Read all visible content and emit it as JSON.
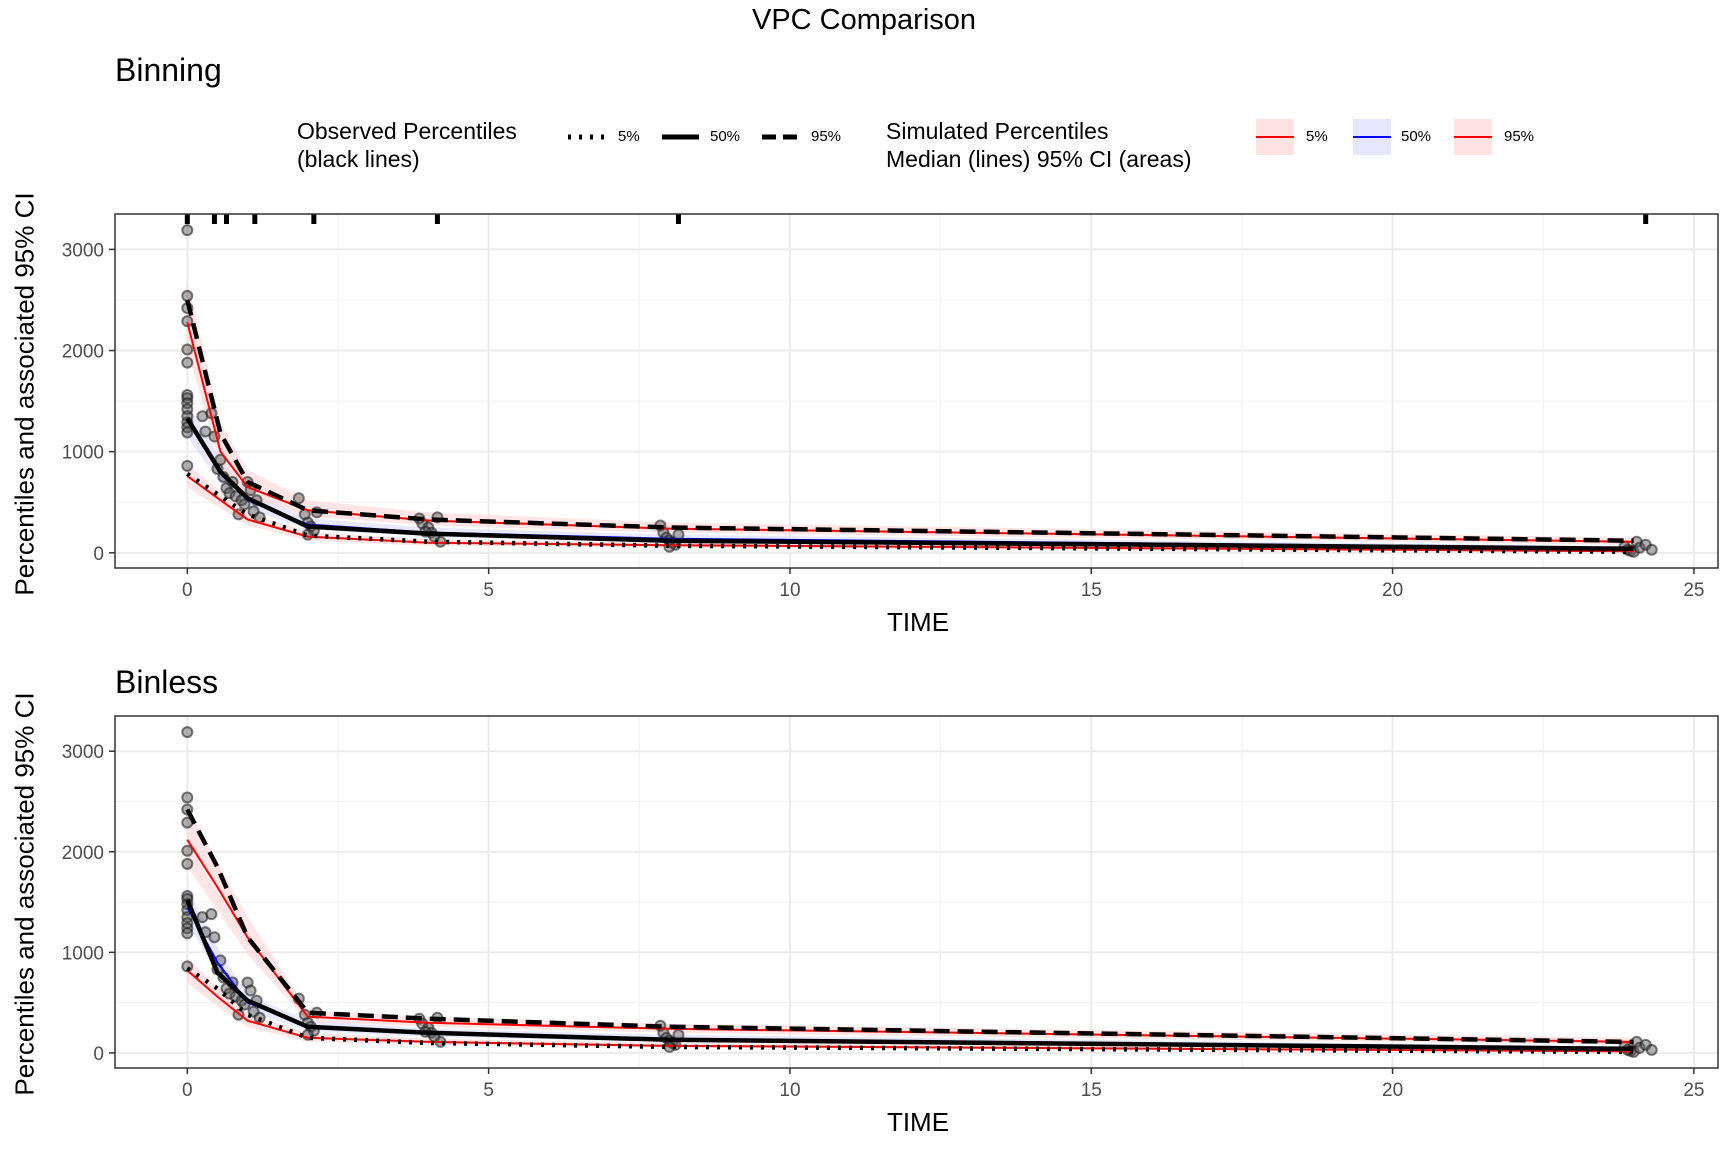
{
  "title": "VPC Comparison",
  "legend": {
    "observed": {
      "title_line1": "Observed Percentiles",
      "title_line2": "(black lines)",
      "items": [
        {
          "label": "5%",
          "linetype": "dotted"
        },
        {
          "label": "50%",
          "linetype": "solid"
        },
        {
          "label": "95%",
          "linetype": "dashed"
        }
      ]
    },
    "simulated": {
      "title_line1": "Simulated Percentiles",
      "title_line2": "Median (lines) 95% CI (areas)",
      "items": [
        {
          "label": "5%",
          "color": "#ff0000",
          "fill": "#ffd0d0"
        },
        {
          "label": "50%",
          "color": "#0000ff",
          "fill": "#d6d6ff"
        },
        {
          "label": "95%",
          "color": "#ff0000",
          "fill": "#ffd0d0"
        }
      ]
    }
  },
  "chart_data": [
    {
      "type": "line",
      "title": "Binning",
      "xlabel": "TIME",
      "ylabel": "Percentiles and associated 95% CI",
      "xlim": [
        -1.2,
        25.4
      ],
      "ylim": [
        -150,
        3350
      ],
      "xticks": [
        0,
        5,
        10,
        15,
        20,
        25
      ],
      "yticks": [
        0,
        1000,
        2000,
        3000
      ],
      "bin_boundaries": [
        0,
        0.45,
        0.65,
        1.12,
        2.1,
        4.15,
        8.15,
        24.2
      ],
      "observed_points": [
        [
          0,
          3190
        ],
        [
          0,
          2540
        ],
        [
          0,
          2420
        ],
        [
          0,
          2290
        ],
        [
          0,
          2010
        ],
        [
          0,
          1880
        ],
        [
          0,
          1560
        ],
        [
          0,
          1530
        ],
        [
          0,
          1480
        ],
        [
          0,
          1420
        ],
        [
          0,
          1350
        ],
        [
          0,
          1290
        ],
        [
          0,
          1240
        ],
        [
          0,
          1190
        ],
        [
          0,
          860
        ],
        [
          0.25,
          1350
        ],
        [
          0.3,
          1200
        ],
        [
          0.4,
          1380
        ],
        [
          0.45,
          1150
        ],
        [
          0.5,
          830
        ],
        [
          0.55,
          920
        ],
        [
          0.6,
          750
        ],
        [
          0.65,
          640
        ],
        [
          0.7,
          590
        ],
        [
          0.75,
          700
        ],
        [
          0.8,
          560
        ],
        [
          0.85,
          380
        ],
        [
          0.9,
          520
        ],
        [
          0.95,
          480
        ],
        [
          1.0,
          700
        ],
        [
          1.05,
          620
        ],
        [
          1.1,
          410
        ],
        [
          1.15,
          520
        ],
        [
          1.2,
          350
        ],
        [
          1.85,
          540
        ],
        [
          1.95,
          380
        ],
        [
          2.0,
          300
        ],
        [
          2.05,
          260
        ],
        [
          2.1,
          220
        ],
        [
          2.15,
          400
        ],
        [
          2.0,
          180
        ],
        [
          3.85,
          340
        ],
        [
          3.9,
          290
        ],
        [
          4.0,
          250
        ],
        [
          4.05,
          200
        ],
        [
          4.1,
          160
        ],
        [
          4.15,
          350
        ],
        [
          4.2,
          110
        ],
        [
          3.95,
          210
        ],
        [
          7.85,
          270
        ],
        [
          7.9,
          200
        ],
        [
          7.95,
          150
        ],
        [
          8.0,
          120
        ],
        [
          8.05,
          100
        ],
        [
          8.1,
          80
        ],
        [
          8.15,
          180
        ],
        [
          8.0,
          60
        ],
        [
          23.85,
          60
        ],
        [
          23.9,
          30
        ],
        [
          23.95,
          20
        ],
        [
          24.0,
          10
        ],
        [
          24.05,
          110
        ],
        [
          24.1,
          50
        ],
        [
          24.2,
          80
        ],
        [
          24.3,
          30
        ]
      ],
      "series": [
        {
          "name": "5%",
          "group": "simulated",
          "x": [
            0,
            0.55,
            1.0,
            2.0,
            4.0,
            8.0,
            24.0
          ],
          "y": [
            760,
            520,
            330,
            160,
            100,
            75,
            15
          ],
          "lower": [
            650,
            440,
            270,
            120,
            70,
            50,
            5
          ],
          "upper": [
            870,
            610,
            400,
            210,
            130,
            100,
            30
          ]
        },
        {
          "name": "50%",
          "group": "simulated",
          "x": [
            0,
            0.55,
            1.0,
            2.0,
            4.0,
            8.0,
            24.0
          ],
          "y": [
            1320,
            800,
            520,
            280,
            200,
            140,
            45
          ],
          "lower": [
            1150,
            680,
            440,
            230,
            160,
            110,
            30
          ],
          "upper": [
            1480,
            920,
            600,
            340,
            250,
            180,
            65
          ]
        },
        {
          "name": "95%",
          "group": "simulated",
          "x": [
            0,
            0.55,
            1.0,
            2.0,
            4.0,
            8.0,
            24.0
          ],
          "y": [
            2280,
            1000,
            650,
            420,
            320,
            240,
            110
          ],
          "lower": [
            2000,
            860,
            550,
            360,
            270,
            200,
            80
          ],
          "upper": [
            2700,
            1280,
            820,
            520,
            400,
            300,
            150
          ]
        },
        {
          "name": "5%",
          "group": "observed",
          "x": [
            0,
            0.55,
            1.0,
            2.0,
            4.0,
            8.0,
            24.0
          ],
          "y": [
            780,
            560,
            380,
            170,
            110,
            70,
            10
          ]
        },
        {
          "name": "50%",
          "group": "observed",
          "x": [
            0,
            0.55,
            1.0,
            2.0,
            4.0,
            8.0,
            24.0
          ],
          "y": [
            1330,
            800,
            540,
            260,
            190,
            120,
            40
          ]
        },
        {
          "name": "95%",
          "group": "observed",
          "x": [
            0,
            0.55,
            1.0,
            2.0,
            4.0,
            8.0,
            24.0
          ],
          "y": [
            2500,
            1180,
            700,
            420,
            330,
            250,
            120
          ]
        }
      ]
    },
    {
      "type": "line",
      "title": "Binless",
      "xlabel": "TIME",
      "ylabel": "Percentiles and associated 95% CI",
      "xlim": [
        -1.2,
        25.4
      ],
      "ylim": [
        -150,
        3350
      ],
      "xticks": [
        0,
        5,
        10,
        15,
        20,
        25
      ],
      "yticks": [
        0,
        1000,
        2000,
        3000
      ],
      "observed_points": [
        [
          0,
          3190
        ],
        [
          0,
          2540
        ],
        [
          0,
          2420
        ],
        [
          0,
          2290
        ],
        [
          0,
          2010
        ],
        [
          0,
          1880
        ],
        [
          0,
          1560
        ],
        [
          0,
          1530
        ],
        [
          0,
          1480
        ],
        [
          0,
          1420
        ],
        [
          0,
          1350
        ],
        [
          0,
          1290
        ],
        [
          0,
          1240
        ],
        [
          0,
          1190
        ],
        [
          0,
          860
        ],
        [
          0.25,
          1350
        ],
        [
          0.3,
          1200
        ],
        [
          0.4,
          1380
        ],
        [
          0.45,
          1150
        ],
        [
          0.5,
          830
        ],
        [
          0.55,
          920
        ],
        [
          0.6,
          750
        ],
        [
          0.65,
          640
        ],
        [
          0.7,
          590
        ],
        [
          0.75,
          700
        ],
        [
          0.8,
          560
        ],
        [
          0.85,
          380
        ],
        [
          0.9,
          520
        ],
        [
          0.95,
          480
        ],
        [
          1.0,
          700
        ],
        [
          1.05,
          620
        ],
        [
          1.1,
          410
        ],
        [
          1.15,
          520
        ],
        [
          1.2,
          350
        ],
        [
          1.85,
          540
        ],
        [
          1.95,
          380
        ],
        [
          2.0,
          300
        ],
        [
          2.05,
          260
        ],
        [
          2.1,
          220
        ],
        [
          2.15,
          400
        ],
        [
          2.0,
          180
        ],
        [
          3.85,
          340
        ],
        [
          3.9,
          290
        ],
        [
          4.0,
          250
        ],
        [
          4.05,
          200
        ],
        [
          4.1,
          160
        ],
        [
          4.15,
          350
        ],
        [
          4.2,
          110
        ],
        [
          3.95,
          210
        ],
        [
          7.85,
          270
        ],
        [
          7.9,
          200
        ],
        [
          7.95,
          150
        ],
        [
          8.0,
          120
        ],
        [
          8.05,
          100
        ],
        [
          8.1,
          80
        ],
        [
          8.15,
          180
        ],
        [
          8.0,
          60
        ],
        [
          23.85,
          60
        ],
        [
          23.9,
          30
        ],
        [
          23.95,
          20
        ],
        [
          24.0,
          10
        ],
        [
          24.05,
          110
        ],
        [
          24.1,
          50
        ],
        [
          24.2,
          80
        ],
        [
          24.3,
          30
        ]
      ],
      "series": [
        {
          "name": "5%",
          "group": "simulated",
          "x": [
            0,
            0.5,
            1.0,
            2.0,
            4.0,
            8.0,
            24.0
          ],
          "y": [
            820,
            560,
            320,
            150,
            110,
            70,
            15
          ],
          "lower": [
            700,
            460,
            260,
            110,
            80,
            50,
            5
          ],
          "upper": [
            940,
            660,
            390,
            200,
            140,
            100,
            30
          ]
        },
        {
          "name": "50%",
          "group": "simulated",
          "x": [
            0,
            0.5,
            1.0,
            2.0,
            4.0,
            8.0,
            24.0
          ],
          "y": [
            1450,
            900,
            500,
            270,
            200,
            140,
            45
          ],
          "lower": [
            1300,
            780,
            420,
            220,
            160,
            110,
            30
          ],
          "upper": [
            1650,
            1050,
            580,
            320,
            240,
            180,
            65
          ]
        },
        {
          "name": "95%",
          "group": "simulated",
          "x": [
            0,
            0.5,
            1.0,
            2.0,
            4.0,
            8.0,
            24.0
          ],
          "y": [
            2120,
            1650,
            1150,
            360,
            300,
            240,
            110
          ],
          "lower": [
            1850,
            1420,
            980,
            310,
            260,
            200,
            80
          ],
          "upper": [
            2450,
            1900,
            1350,
            420,
            360,
            290,
            150
          ]
        },
        {
          "name": "5%",
          "group": "observed",
          "x": [
            0,
            0.5,
            1.0,
            2.0,
            4.0,
            8.0,
            24.0
          ],
          "y": [
            840,
            640,
            380,
            150,
            100,
            60,
            10
          ]
        },
        {
          "name": "50%",
          "group": "observed",
          "x": [
            0,
            0.5,
            1.0,
            2.0,
            4.0,
            8.0,
            24.0
          ],
          "y": [
            1520,
            800,
            520,
            260,
            200,
            130,
            40
          ]
        },
        {
          "name": "95%",
          "group": "observed",
          "x": [
            0,
            0.5,
            1.0,
            2.0,
            4.0,
            8.0,
            24.0
          ],
          "y": [
            2420,
            1850,
            1150,
            400,
            340,
            260,
            110
          ]
        }
      ]
    }
  ]
}
